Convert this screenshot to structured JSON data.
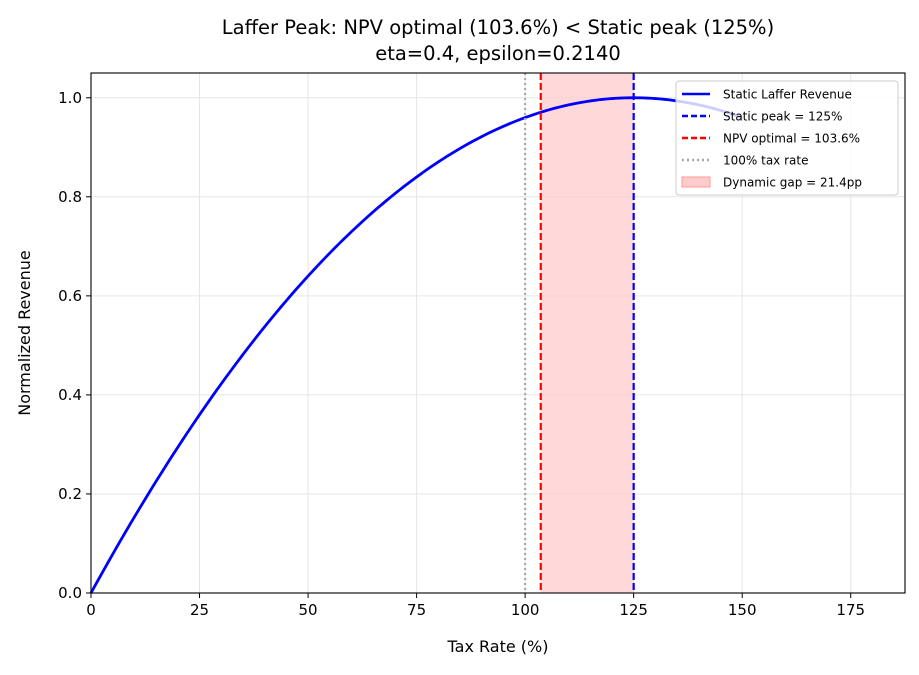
{
  "chart_data": {
    "type": "line",
    "title": "Laffer Peak: NPV optimal (103.6%) < Static peak (125%)",
    "subtitle": "eta=0.4, epsilon=0.2140",
    "xlabel": "Tax Rate (%)",
    "ylabel": "Normalized Revenue",
    "xlim": [
      0,
      187.5
    ],
    "ylim": [
      0,
      1.05
    ],
    "xticks": [
      0,
      25,
      50,
      75,
      100,
      125,
      150,
      175
    ],
    "yticks": [
      0.0,
      0.2,
      0.4,
      0.6,
      0.8,
      1.0
    ],
    "ytick_labels": [
      "0.0",
      "0.2",
      "0.4",
      "0.6",
      "0.8",
      "1.0"
    ],
    "grid": true,
    "legend_placement": "upper-right",
    "series": [
      {
        "name": "Static Laffer Revenue",
        "color": "#0000ff",
        "x_range": [
          0,
          150
        ],
        "formula": "4*(t/250)*(1-t/250)",
        "peak": {
          "x": 125,
          "y": 1.0
        }
      }
    ],
    "vlines": [
      {
        "name": "Static peak = 125%",
        "x": 125,
        "color": "#0000ff",
        "style": "dashed"
      },
      {
        "name": "NPV optimal = 103.6%",
        "x": 103.6,
        "color": "#ff0000",
        "style": "dashed"
      },
      {
        "name": "100% tax rate",
        "x": 100,
        "color": "#aaaaaa",
        "style": "dotted"
      }
    ],
    "spans": [
      {
        "name": "Dynamic gap = 21.4pp",
        "x0": 103.6,
        "x1": 125,
        "color": "#ffcccc"
      }
    ]
  }
}
